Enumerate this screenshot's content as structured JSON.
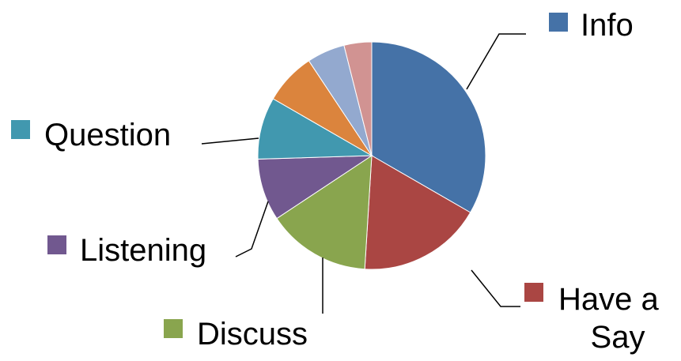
{
  "chart_data": {
    "type": "pie",
    "title": "",
    "start_angle_deg": 0,
    "direction": "clockwise",
    "slices": [
      {
        "label": "Info",
        "value": 34,
        "color": "#4572A7",
        "show_label": true
      },
      {
        "label": "Have a Say",
        "value": 18,
        "color": "#AA4643",
        "show_label": true
      },
      {
        "label": "Discuss",
        "value": 15,
        "color": "#89A54E",
        "show_label": true
      },
      {
        "label": "Listening",
        "value": 9,
        "color": "#71588F",
        "show_label": true
      },
      {
        "label": "Question",
        "value": 9,
        "color": "#4198AF",
        "show_label": true
      },
      {
        "label": "",
        "value": 7.5,
        "color": "#DB843D",
        "show_label": false
      },
      {
        "label": "",
        "value": 5.5,
        "color": "#93A9CF",
        "show_label": false
      },
      {
        "label": "",
        "value": 4,
        "color": "#D19392",
        "show_label": false
      }
    ],
    "legend": "data-labels with leader lines"
  }
}
